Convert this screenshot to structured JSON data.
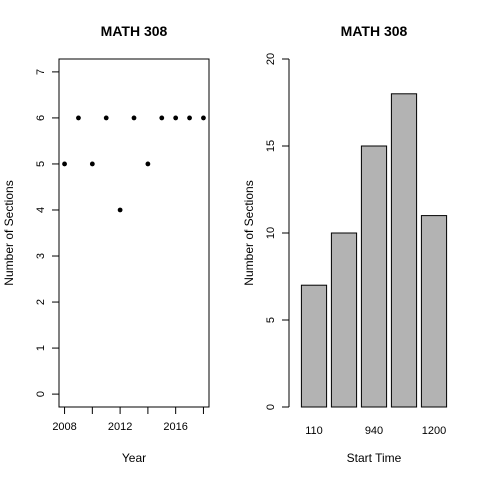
{
  "chart_data": [
    {
      "type": "scatter",
      "title": "MATH 308",
      "xlabel": "Year",
      "ylabel": "Number of Sections",
      "xlim": [
        2007.6,
        2018.4
      ],
      "ylim": [
        -0.28,
        7.28
      ],
      "x_ticks": [
        2008,
        2010,
        2012,
        2014,
        2016,
        2018
      ],
      "x_tick_labels": [
        "2008",
        "",
        "2012",
        "",
        "2016",
        ""
      ],
      "y_ticks": [
        0,
        1,
        2,
        3,
        4,
        5,
        6,
        7
      ],
      "y_tick_labels": [
        "0",
        "1",
        "2",
        "3",
        "4",
        "5",
        "6",
        "7"
      ],
      "x": [
        2008,
        2009,
        2010,
        2011,
        2012,
        2013,
        2014,
        2015,
        2016,
        2017,
        2018
      ],
      "y": [
        5,
        6,
        5,
        6,
        4,
        6,
        5,
        6,
        6,
        6,
        6
      ],
      "grid": false,
      "point_color": "#000000"
    },
    {
      "type": "bar",
      "title": "MATH 308",
      "xlabel": "Start Time",
      "ylabel": "Number of Sections",
      "ylim": [
        0,
        20
      ],
      "categories": [
        "110",
        "",
        "940",
        "",
        "1200"
      ],
      "values": [
        7,
        10,
        15,
        18,
        11
      ],
      "y_ticks": [
        0,
        5,
        10,
        15,
        20
      ],
      "y_tick_labels": [
        "0",
        "5",
        "10",
        "15",
        "20"
      ],
      "grid": false,
      "bar_color": "#b3b3b3",
      "bar_border": "#000000"
    }
  ]
}
